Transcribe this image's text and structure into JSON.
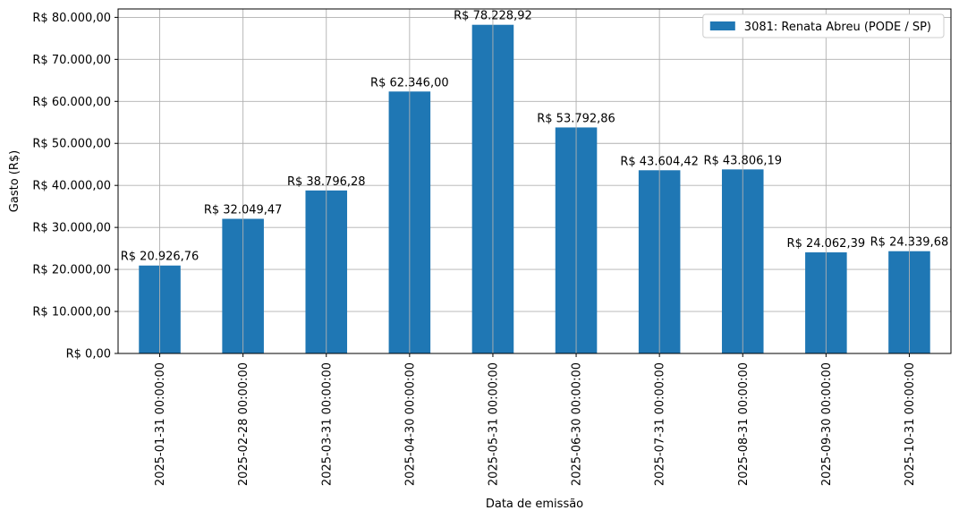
{
  "chart_data": {
    "type": "bar",
    "categories": [
      "2025-01-31 00:00:00",
      "2025-02-28 00:00:00",
      "2025-03-31 00:00:00",
      "2025-04-30 00:00:00",
      "2025-05-31 00:00:00",
      "2025-06-30 00:00:00",
      "2025-07-31 00:00:00",
      "2025-08-31 00:00:00",
      "2025-09-30 00:00:00",
      "2025-10-31 00:00:00"
    ],
    "series": [
      {
        "name": "3081: Renata Abreu (PODE / SP)",
        "color": "#1f77b4",
        "values": [
          20926.76,
          32049.47,
          38796.28,
          62346.0,
          78228.92,
          53792.86,
          43604.42,
          43806.19,
          24062.39,
          24339.68
        ],
        "labels": [
          "R$ 20.926,76",
          "R$ 32.049,47",
          "R$ 38.796,28",
          "R$ 62.346,00",
          "R$ 78.228,92",
          "R$ 53.792,86",
          "R$ 43.604,42",
          "R$ 43.806,19",
          "R$ 24.062,39",
          "R$ 24.339,68"
        ]
      }
    ],
    "xlabel": "Data de emissão",
    "ylabel": "Gasto (R$)",
    "ylim": [
      0,
      82000
    ],
    "yticks": [
      0,
      10000,
      20000,
      30000,
      40000,
      50000,
      60000,
      70000,
      80000
    ],
    "ytick_labels": [
      "R$ 0,00",
      "R$ 10.000,00",
      "R$ 20.000,00",
      "R$ 30.000,00",
      "R$ 40.000,00",
      "R$ 50.000,00",
      "R$ 60.000,00",
      "R$ 70.000,00",
      "R$ 80.000,00"
    ],
    "grid": true,
    "legend_position": "top-right"
  }
}
